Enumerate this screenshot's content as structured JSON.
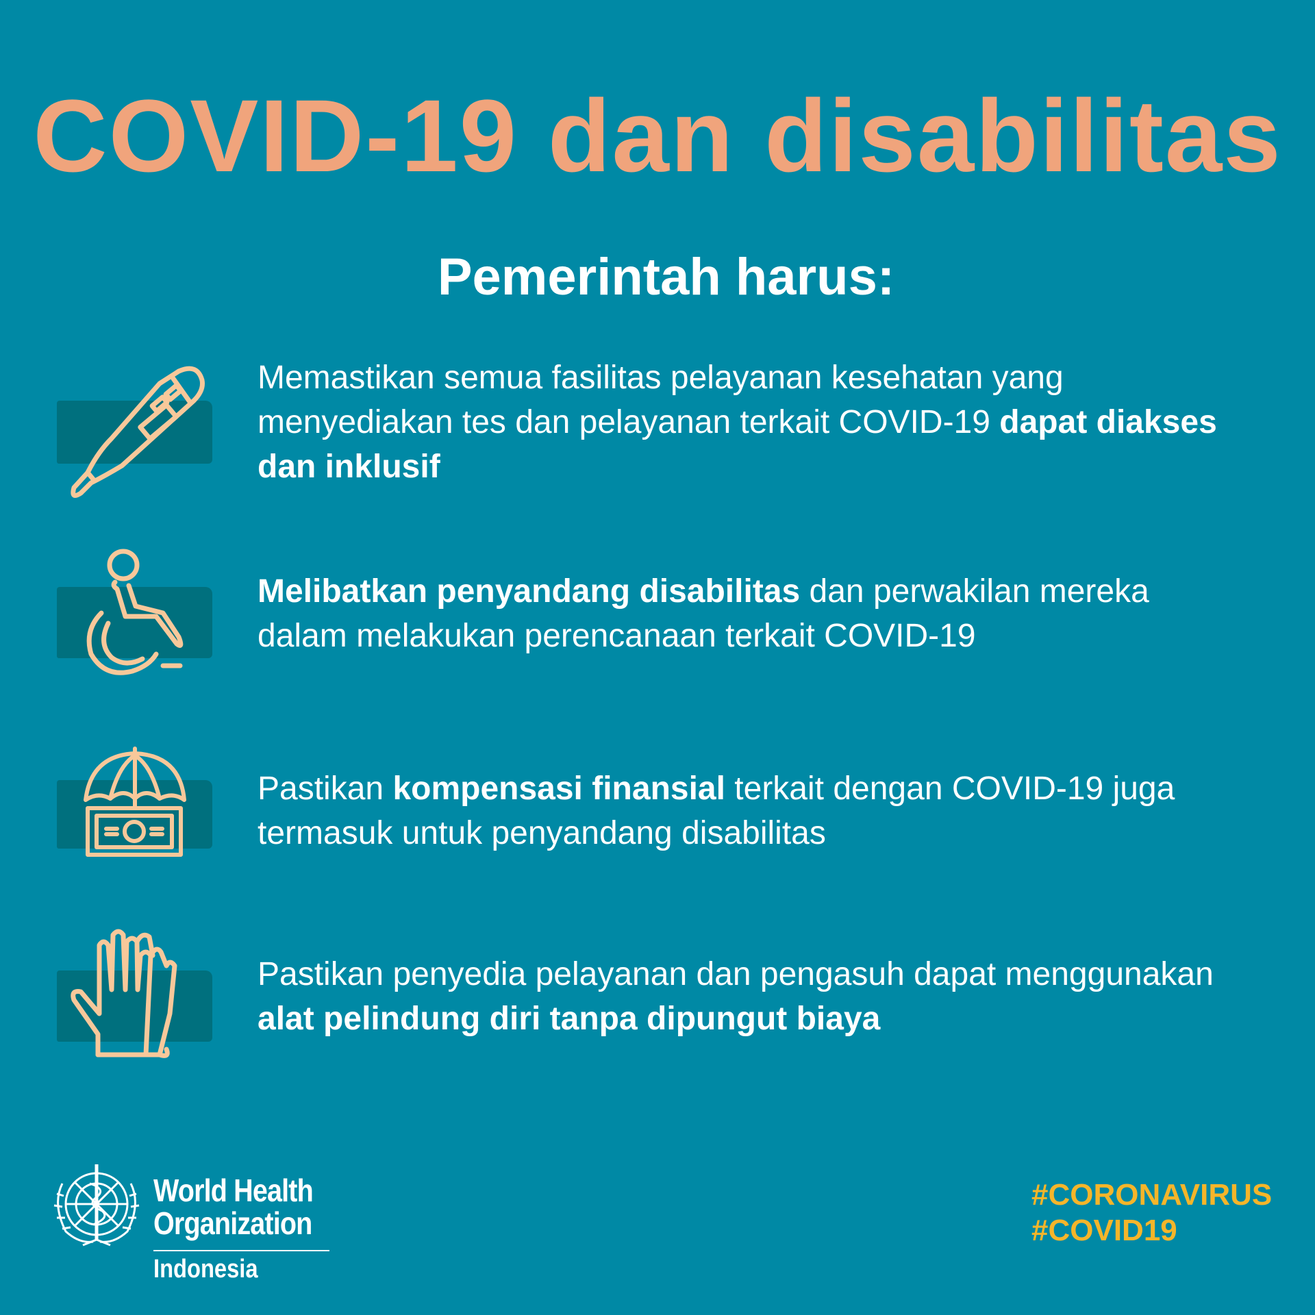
{
  "title": "COVID-19 dan disabilitas",
  "subtitle": "Pemerintah harus:",
  "items": [
    {
      "icon": "thermometer-icon",
      "parts": [
        "Memastikan semua fasilitas pelayanan kesehatan yang menyediakan tes dan pelayanan terkait COVID-19 ",
        "dapat diakses dan inklusif",
        ""
      ]
    },
    {
      "icon": "wheelchair-icon",
      "parts": [
        "",
        "Melibatkan penyandang disabilitas",
        " dan perwakilan mereka dalam melakukan perencanaan terkait COVID-19"
      ]
    },
    {
      "icon": "umbrella-money-icon",
      "parts": [
        "Pastikan ",
        "kompensasi finansial",
        " terkait dengan COVID-19 juga termasuk untuk penyandang disabilitas"
      ]
    },
    {
      "icon": "gloves-icon",
      "parts": [
        "Pastikan penyedia pelayanan dan pengasuh dapat menggunakan ",
        "alat pelindung diri tanpa dipungut biaya",
        ""
      ]
    }
  ],
  "logo": {
    "line1": "World Health",
    "line2": "Organization",
    "country": "Indonesia"
  },
  "hashtags": [
    "#CORONAVIRUS",
    "#COVID19"
  ],
  "colors": {
    "background": "#0089a5",
    "title": "#f0a47c",
    "icon": "#f8c89a",
    "patch": "#00707e",
    "hashtag": "#f5b52a"
  }
}
